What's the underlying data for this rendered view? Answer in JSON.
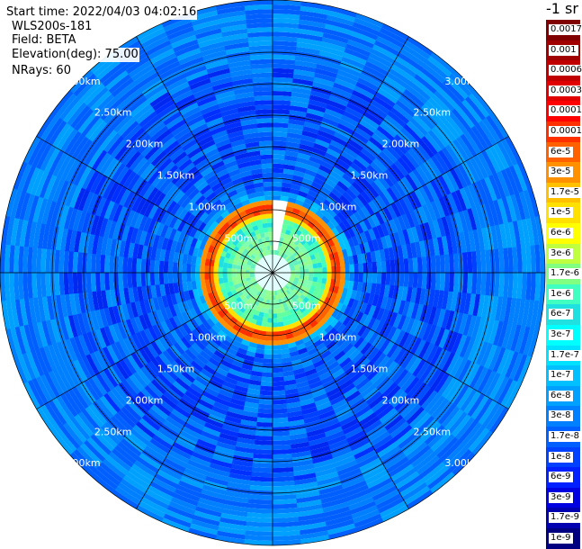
{
  "header": {
    "start_time": "Start time: 2022/04/03 04:02:16",
    "instrument": "WLS200s-181",
    "field": "Field: BETA",
    "elevation": "Elevation(deg): 75.00",
    "nrays": "NRays: 60"
  },
  "unit_label": "-1 sr",
  "range_rings": [
    {
      "label": "500m"
    },
    {
      "label": "1.00km"
    },
    {
      "label": "1.50km"
    },
    {
      "label": "2.00km"
    },
    {
      "label": "2.50km"
    },
    {
      "label": "3.00km"
    }
  ],
  "colorbar": {
    "labels": [
      "0.0017",
      "0.001",
      "0.0006",
      "0.0003",
      "0.00017",
      "0.0001",
      "6e-5",
      "3e-5",
      "1.7e-5",
      "1e-5",
      "6e-6",
      "3e-6",
      "1.7e-6",
      "1e-6",
      "6e-7",
      "3e-7",
      "1.7e-7",
      "1e-7",
      "6e-8",
      "3e-8",
      "1.7e-8",
      "1e-8",
      "6e-9",
      "3e-9",
      "1.7e-9",
      "1e-9"
    ],
    "colors": [
      "#800000",
      "#a00000",
      "#c00000",
      "#e00000",
      "#ff0000",
      "#ff3000",
      "#ff6000",
      "#ff9000",
      "#ffc000",
      "#ffe000",
      "#ffff00",
      "#c0ff40",
      "#80ff80",
      "#40ffc0",
      "#20e0e0",
      "#00ffff",
      "#00e0ff",
      "#00c0ff",
      "#00a0ff",
      "#0080ff",
      "#0060ff",
      "#0040ff",
      "#0020ff",
      "#0000e0",
      "#0000b0",
      "#000080"
    ]
  }
}
